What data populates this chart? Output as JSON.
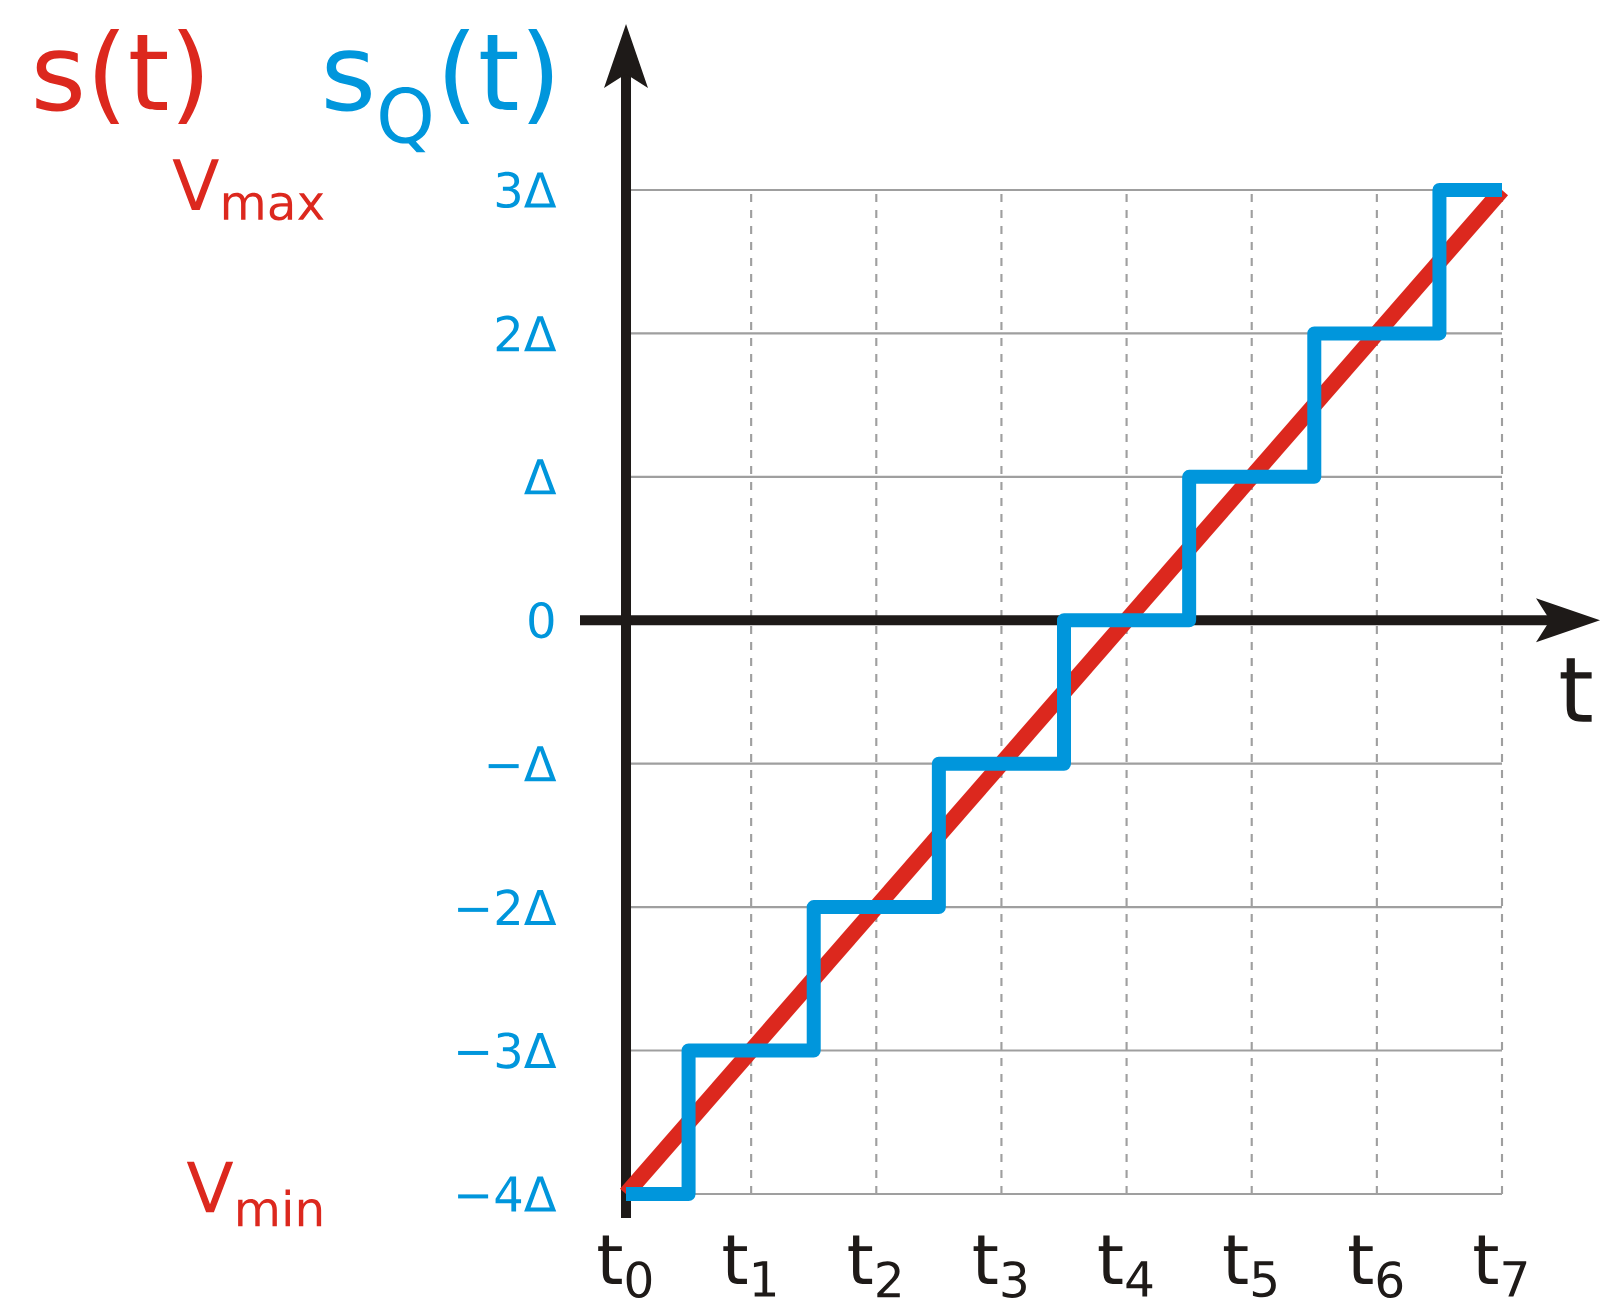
{
  "chart_data": {
    "type": "line",
    "series": [
      {
        "name": "s(t)",
        "color": "#dc281e",
        "x": [
          0,
          7
        ],
        "values": [
          -4,
          3
        ]
      },
      {
        "name": "s$_{Q}$(t)",
        "type": "step",
        "color": "#0096dc",
        "x": [
          0,
          0.5,
          1.5,
          2.5,
          3.5,
          4.5,
          5.5,
          6.5,
          7
        ],
        "values": [
          -4,
          -3,
          -2,
          -1,
          0,
          1,
          2,
          3,
          3
        ]
      }
    ],
    "xlabel": "t",
    "xlim": [
      0,
      7
    ],
    "ylim": [
      -4,
      3
    ],
    "xticks": [
      {
        "value": 0,
        "label": "t$_{0}$"
      },
      {
        "value": 1,
        "label": "t$_{1}$"
      },
      {
        "value": 2,
        "label": "t$_{2}$"
      },
      {
        "value": 3,
        "label": "t$_{3}$"
      },
      {
        "value": 4,
        "label": "t$_{4}$"
      },
      {
        "value": 5,
        "label": "t$_{5}$"
      },
      {
        "value": 6,
        "label": "t$_{6}$"
      },
      {
        "value": 7,
        "label": "t$_{7}$"
      }
    ],
    "yticks": [
      {
        "value": 3,
        "label": "3Δ"
      },
      {
        "value": 2,
        "label": "2Δ"
      },
      {
        "value": 1,
        "label": "Δ"
      },
      0,
      {
        "value": -1,
        "label": "−Δ"
      },
      {
        "value": -2,
        "label": "−2Δ"
      },
      {
        "value": -3,
        "label": "−3Δ"
      },
      {
        "value": -4,
        "label": "−4Δ"
      }
    ],
    "annotations": [
      "V$_{max}$",
      "V$_{min}$"
    ],
    "grid": true
  }
}
